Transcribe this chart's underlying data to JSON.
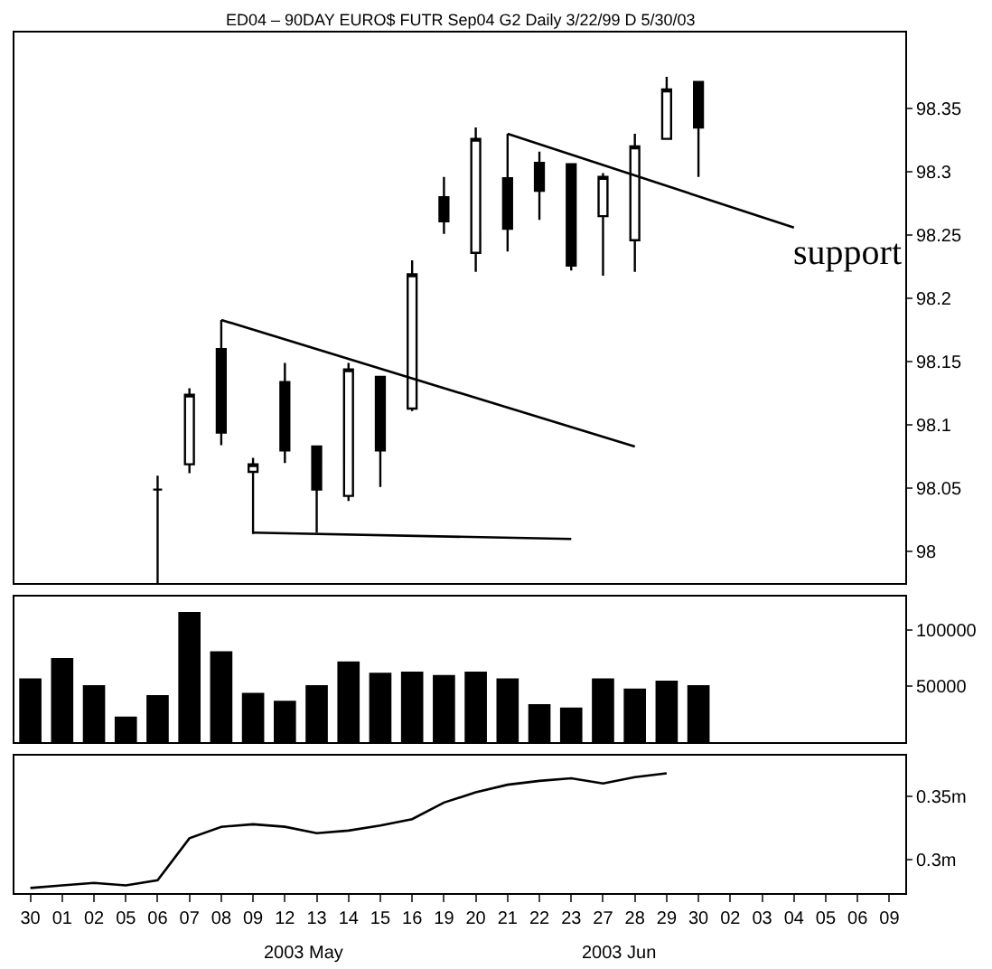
{
  "chart_data": [
    {
      "type": "candlestick",
      "title": "ED04 – 90DAY EURO$ FUTR Sep04 G2 Daily 3/22/99 D 5/30/03",
      "categories": [
        "30",
        "01",
        "02",
        "05",
        "06",
        "07",
        "08",
        "09",
        "12",
        "13",
        "14",
        "15",
        "16",
        "19",
        "20",
        "21",
        "22",
        "23",
        "27",
        "28",
        "29",
        "30",
        "02",
        "03",
        "04",
        "05",
        "06",
        "09"
      ],
      "ohlc": [
        null,
        null,
        null,
        null,
        [
          98.049,
          98.06,
          97.975,
          98.049
        ],
        [
          98.069,
          98.129,
          98.062,
          98.124
        ],
        [
          98.16,
          98.183,
          98.084,
          98.094
        ],
        [
          98.063,
          98.074,
          98.014,
          98.069
        ],
        [
          98.134,
          98.149,
          98.07,
          98.08
        ],
        [
          98.083,
          98.083,
          98.015,
          98.049
        ],
        [
          98.044,
          98.149,
          98.04,
          98.144
        ],
        [
          98.138,
          98.138,
          98.051,
          98.08
        ],
        [
          98.113,
          98.23,
          98.111,
          98.219
        ],
        [
          98.28,
          98.296,
          98.251,
          98.261
        ],
        [
          98.236,
          98.335,
          98.221,
          98.326
        ],
        [
          98.295,
          98.33,
          98.237,
          98.255
        ],
        [
          98.307,
          98.316,
          98.262,
          98.285
        ],
        [
          98.306,
          98.306,
          98.222,
          98.226
        ],
        [
          98.265,
          98.299,
          98.218,
          98.296
        ],
        [
          98.246,
          98.33,
          98.221,
          98.32
        ],
        [
          98.326,
          98.375,
          98.326,
          98.365
        ],
        [
          98.371,
          98.371,
          98.296,
          98.335
        ],
        null,
        null,
        null,
        null,
        null,
        null
      ],
      "color": "#000000",
      "series": [
        {
          "type": "line",
          "x": [
            "08",
            "28"
          ],
          "values": [
            98.183,
            98.083
          ],
          "color": "#000000"
        },
        {
          "type": "line",
          "x": [
            "21",
            "04"
          ],
          "values": [
            98.33,
            98.256
          ],
          "color": "#000000"
        },
        {
          "type": "line",
          "x": [
            "09",
            "23"
          ],
          "values": [
            98.015,
            98.01
          ],
          "color": "#000000"
        }
      ],
      "annotations": [
        "support"
      ],
      "ylim": [
        97.975,
        98.41
      ],
      "yticks": [
        98,
        98.05,
        98.1,
        98.15,
        98.2,
        98.25,
        98.3,
        98.35
      ],
      "tick_labels": "y"
    },
    {
      "type": "bar",
      "categories": [
        "30",
        "01",
        "02",
        "05",
        "06",
        "07",
        "08",
        "09",
        "12",
        "13",
        "14",
        "15",
        "16",
        "19",
        "20",
        "21",
        "22",
        "23",
        "27",
        "28",
        "29",
        "30",
        "02",
        "03",
        "04",
        "05",
        "06",
        "09"
      ],
      "values": [
        57000,
        75000,
        51000,
        23000,
        42000,
        116000,
        81000,
        44000,
        37000,
        51000,
        72000,
        62000,
        63000,
        60000,
        63000,
        57000,
        34000,
        31000,
        57000,
        48000,
        55000,
        51000,
        null,
        null,
        null,
        null,
        null,
        null
      ],
      "color": "#000000",
      "ylim": [
        0,
        130000
      ],
      "yticks": [
        50000,
        100000
      ],
      "tick_labels": "y"
    },
    {
      "type": "line",
      "categories": [
        "30",
        "01",
        "02",
        "05",
        "06",
        "07",
        "08",
        "09",
        "12",
        "13",
        "14",
        "15",
        "16",
        "19",
        "20",
        "21",
        "22",
        "23",
        "27",
        "28",
        "29",
        "30",
        "02",
        "03",
        "04",
        "05",
        "06",
        "09"
      ],
      "values": [
        0.278,
        0.28,
        0.282,
        0.28,
        0.284,
        0.317,
        0.326,
        0.328,
        0.326,
        0.321,
        0.323,
        0.327,
        0.332,
        0.345,
        0.353,
        0.359,
        0.362,
        0.364,
        0.36,
        0.365,
        0.368,
        null,
        null,
        null,
        null,
        null,
        null,
        null
      ],
      "color": "#000000",
      "marker": "none",
      "ylim": [
        0.274,
        0.382
      ],
      "yticks": [
        {
          "value": 0.35,
          "label": "0.35m"
        },
        {
          "value": 0.3,
          "label": "0.3m"
        }
      ],
      "annotations": [
        "2003 May",
        "2003 Jun"
      ]
    }
  ]
}
